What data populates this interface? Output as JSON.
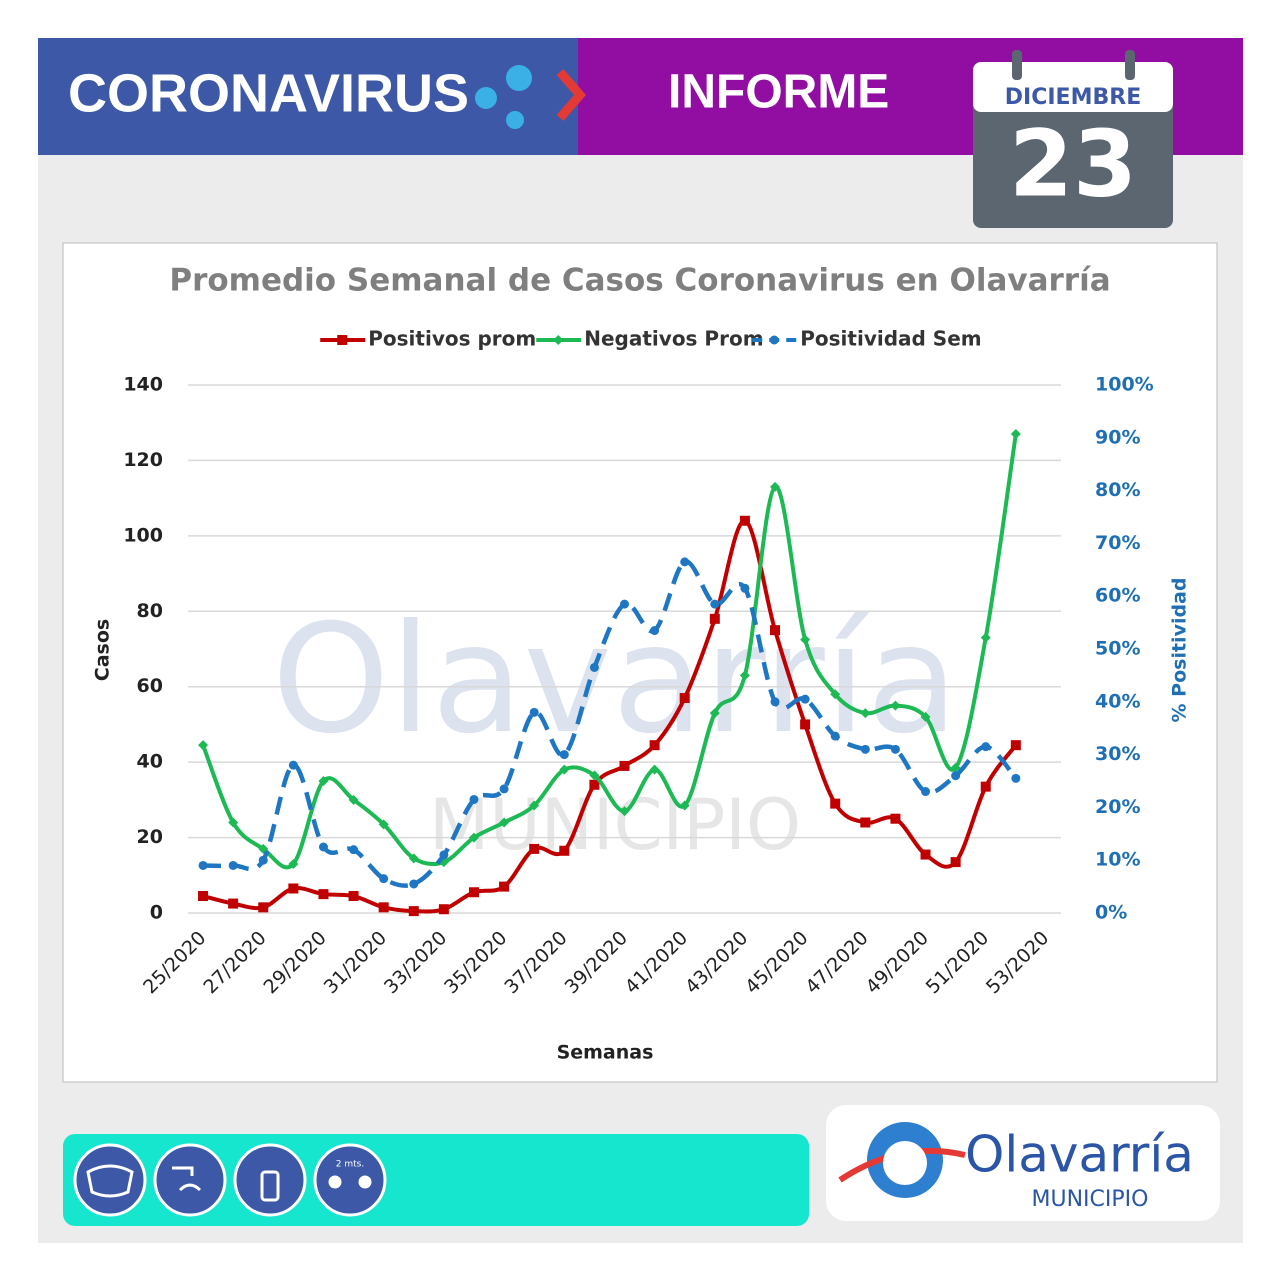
{
  "header": {
    "title": "CORONAVIRUS",
    "subtitle": "INFORME",
    "month": "DICIEMBRE",
    "day": "23"
  },
  "watermark": {
    "name": "Olavarría",
    "sub": "MUNICIPIO"
  },
  "chart_data": {
    "type": "line",
    "title": "Promedio Semanal de Casos Coronavirus en Olavarría",
    "x_label": "Semanas",
    "y_label": "Casos",
    "y2_label": "% Positividad",
    "categories": [
      "25/2020",
      null,
      "27/2020",
      null,
      "29/2020",
      null,
      "31/2020",
      null,
      "33/2020",
      null,
      "35/2020",
      null,
      "37/2020",
      null,
      "39/2020",
      null,
      "41/2020",
      null,
      "43/2020",
      null,
      "45/2020",
      null,
      "47/2020",
      null,
      "49/2020",
      null,
      "51/2020",
      null,
      "53/2020"
    ],
    "ylim": [
      0,
      140
    ],
    "yticks": [
      0,
      20,
      40,
      60,
      80,
      100,
      120,
      140
    ],
    "y2lim": [
      0,
      100
    ],
    "y2ticks": [
      {
        "value": 0,
        "label": "0%"
      },
      {
        "value": 10,
        "label": "10%"
      },
      {
        "value": 20,
        "label": "20%"
      },
      {
        "value": 30,
        "label": "30%"
      },
      {
        "value": 40,
        "label": "40%"
      },
      {
        "value": 50,
        "label": "50%"
      },
      {
        "value": 60,
        "label": "60%"
      },
      {
        "value": 70,
        "label": "70%"
      },
      {
        "value": 80,
        "label": "80%"
      },
      {
        "value": 90,
        "label": "90%"
      },
      {
        "value": 100,
        "label": "100%"
      }
    ],
    "grid": true,
    "legend": "top",
    "smooth": true,
    "series": [
      {
        "name": "Positivos prom",
        "color": "#c00000",
        "marker": "square",
        "dashed": false,
        "values": [
          4.5,
          2.5,
          1.5,
          6.5,
          5,
          4.5,
          1.5,
          0.5,
          1,
          5.5,
          7,
          17,
          16.5,
          34,
          39,
          44.5,
          57,
          78,
          104,
          75,
          50,
          29,
          24,
          25,
          15.5,
          13.5,
          33.5,
          44.5,
          null
        ]
      },
      {
        "name": "Negativos Prom",
        "color": "#1db954",
        "marker": "diamond",
        "dashed": false,
        "values": [
          44.5,
          24,
          17,
          13,
          35,
          30,
          23.5,
          14.5,
          13.5,
          20,
          24,
          28.5,
          38,
          36.5,
          27,
          38,
          28.5,
          53,
          63,
          113,
          72.5,
          58,
          53,
          55,
          52,
          38.5,
          73,
          127,
          null
        ]
      },
      {
        "name": "Positividad Sem",
        "color": "#1f77c4",
        "marker": "circle",
        "dashed": true,
        "axis": "y2",
        "values": [
          9,
          9,
          10,
          28,
          12.5,
          12,
          6.5,
          5.5,
          11,
          21.5,
          23.5,
          38,
          30,
          46.5,
          58.5,
          53.5,
          66.5,
          58.5,
          61.5,
          40,
          40.5,
          33.5,
          31,
          31,
          23,
          26,
          31.5,
          25.5,
          null
        ]
      }
    ]
  },
  "footer": {
    "icon_label": "2 mts.",
    "logo_name": "Olavarría",
    "logo_sub": "MUNICIPIO"
  }
}
